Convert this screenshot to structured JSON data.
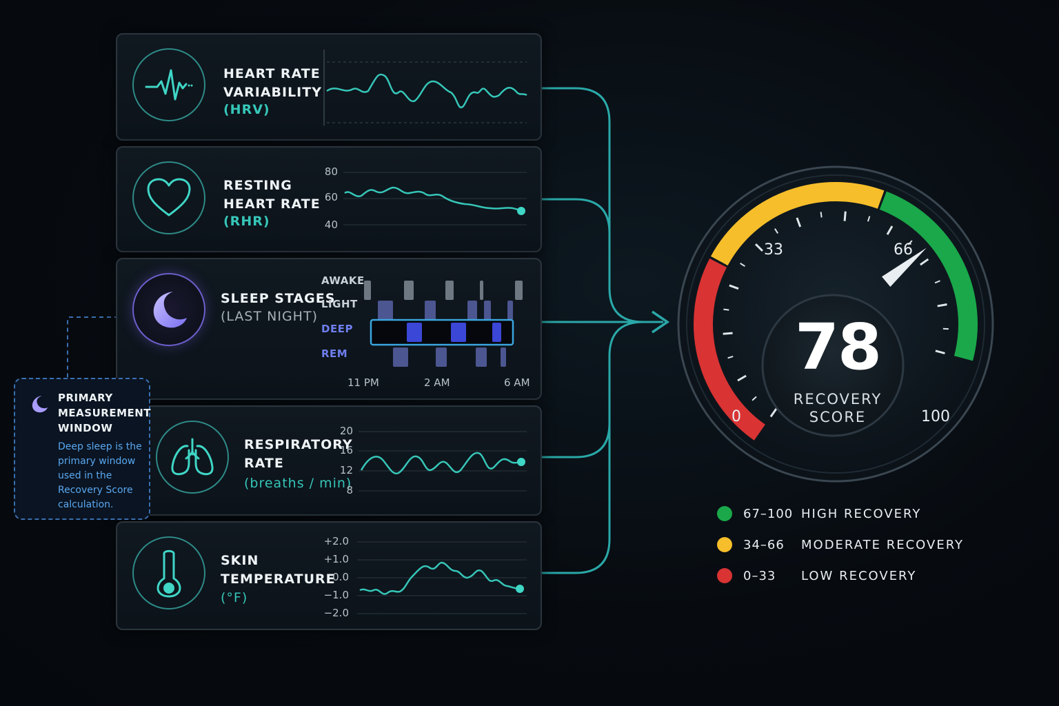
{
  "metrics": {
    "hrv": {
      "title": "HEART RATE\nVARIABILITY",
      "sub": "(HRV)"
    },
    "rhr": {
      "title": "RESTING\nHEART RATE",
      "sub": "(RHR)",
      "ticks": [
        "80",
        "60",
        "40"
      ]
    },
    "sleep": {
      "title": "SLEEP STAGES",
      "sub": "(LAST NIGHT)",
      "stages": [
        "AWAKE",
        "LIGHT",
        "DEEP",
        "REM"
      ],
      "times": [
        "11 PM",
        "2 AM",
        "6 AM"
      ]
    },
    "resp": {
      "title": "RESPIRATORY\nRATE",
      "sub": "(breaths / min)",
      "ticks": [
        "20",
        "16",
        "12",
        "8"
      ]
    },
    "skin": {
      "title": "SKIN\nTEMPERATURE",
      "sub": "(°F)",
      "ticks": [
        "+2.0",
        "+1.0",
        "0.0",
        "−1.0",
        "−2.0"
      ]
    }
  },
  "callout": {
    "title": "PRIMARY\nMEASUREMENT\nWINDOW",
    "text": "Deep sleep is the primary window used in the Recovery Score calculation."
  },
  "gauge": {
    "score": 78,
    "score_text": "78",
    "label": "RECOVERY\nSCORE",
    "min_label": "0",
    "max_label": "100",
    "mark_33": "33",
    "mark_66": "66"
  },
  "legend": [
    {
      "range": "67–100",
      "name": "HIGH RECOVERY",
      "color": "#1aa84a"
    },
    {
      "range": "34–66",
      "name": "MODERATE RECOVERY",
      "color": "#f6be2a"
    },
    {
      "range": "0–33",
      "name": "LOW RECOVERY",
      "color": "#d93333"
    }
  ],
  "colors": {
    "accent": "#36c6b8",
    "red": "#d93333",
    "yellow": "#f6be2a",
    "green": "#1aa84a",
    "deep": "#3b47d6"
  }
}
